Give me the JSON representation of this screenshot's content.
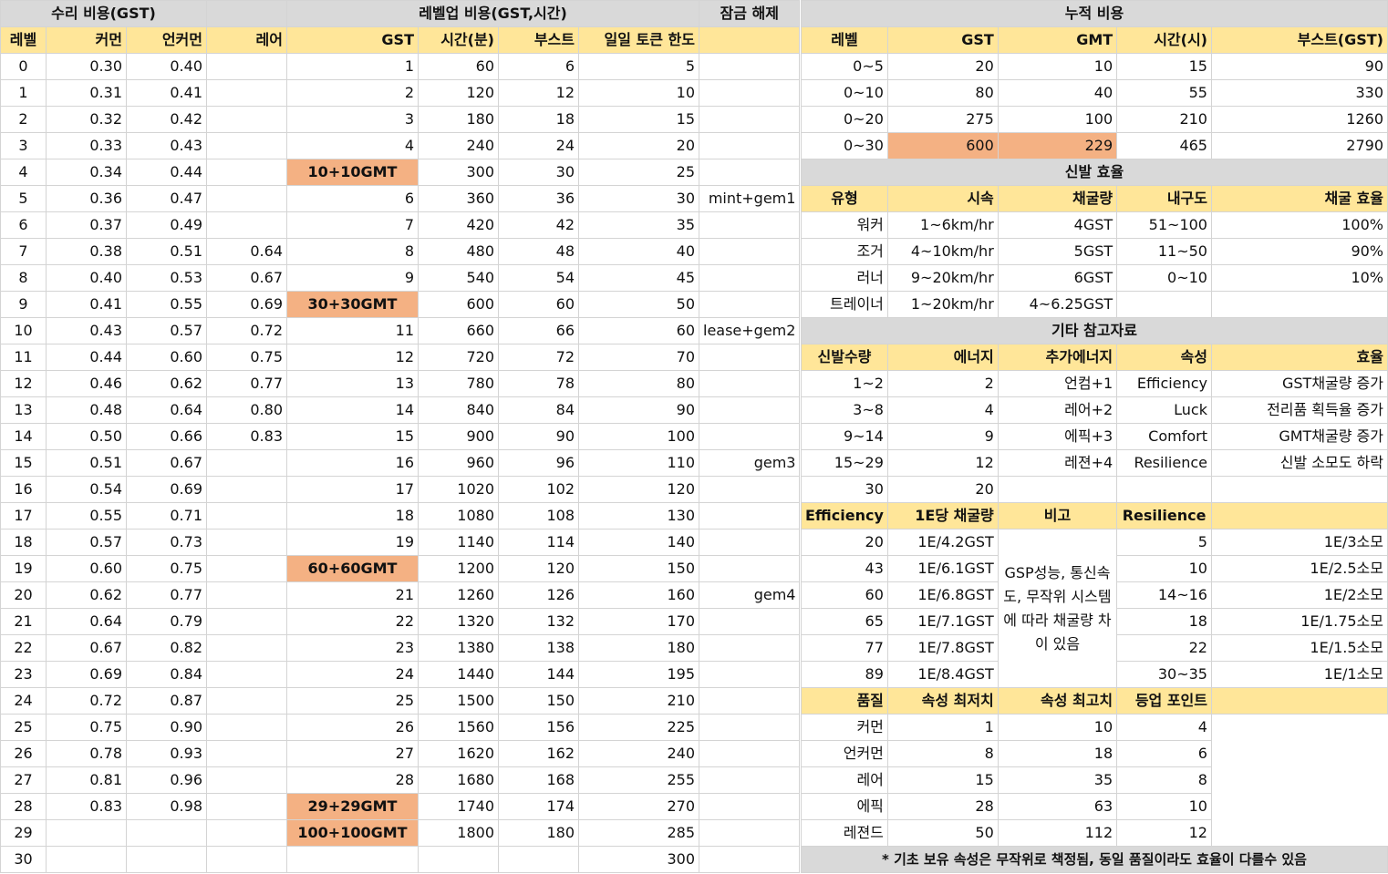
{
  "left": {
    "group_headers": [
      "수리 비용(GST)",
      "",
      "레벨업 비용(GST,시간)",
      "잠금 해제"
    ],
    "columns": [
      "레벨",
      "커먼",
      "언커먼",
      "레어",
      "GST",
      "시간(분)",
      "부스트",
      "일일 토큰 한도",
      ""
    ],
    "rows": [
      [
        "0",
        "0.30",
        "0.40",
        "",
        "1",
        "60",
        "6",
        "5",
        ""
      ],
      [
        "1",
        "0.31",
        "0.41",
        "",
        "2",
        "120",
        "12",
        "10",
        ""
      ],
      [
        "2",
        "0.32",
        "0.42",
        "",
        "3",
        "180",
        "18",
        "15",
        ""
      ],
      [
        "3",
        "0.33",
        "0.43",
        "",
        "4",
        "240",
        "24",
        "20",
        ""
      ],
      [
        "4",
        "0.34",
        "0.44",
        "",
        "10+10GMT",
        "300",
        "30",
        "25",
        ""
      ],
      [
        "5",
        "0.36",
        "0.47",
        "",
        "6",
        "360",
        "36",
        "30",
        "mint+gem1"
      ],
      [
        "6",
        "0.37",
        "0.49",
        "",
        "7",
        "420",
        "42",
        "35",
        ""
      ],
      [
        "7",
        "0.38",
        "0.51",
        "0.64",
        "8",
        "480",
        "48",
        "40",
        ""
      ],
      [
        "8",
        "0.40",
        "0.53",
        "0.67",
        "9",
        "540",
        "54",
        "45",
        ""
      ],
      [
        "9",
        "0.41",
        "0.55",
        "0.69",
        "30+30GMT",
        "600",
        "60",
        "50",
        ""
      ],
      [
        "10",
        "0.43",
        "0.57",
        "0.72",
        "11",
        "660",
        "66",
        "60",
        "lease+gem2"
      ],
      [
        "11",
        "0.44",
        "0.60",
        "0.75",
        "12",
        "720",
        "72",
        "70",
        ""
      ],
      [
        "12",
        "0.46",
        "0.62",
        "0.77",
        "13",
        "780",
        "78",
        "80",
        ""
      ],
      [
        "13",
        "0.48",
        "0.64",
        "0.80",
        "14",
        "840",
        "84",
        "90",
        ""
      ],
      [
        "14",
        "0.50",
        "0.66",
        "0.83",
        "15",
        "900",
        "90",
        "100",
        ""
      ],
      [
        "15",
        "0.51",
        "0.67",
        "",
        "16",
        "960",
        "96",
        "110",
        "gem3"
      ],
      [
        "16",
        "0.54",
        "0.69",
        "",
        "17",
        "1020",
        "102",
        "120",
        ""
      ],
      [
        "17",
        "0.55",
        "0.71",
        "",
        "18",
        "1080",
        "108",
        "130",
        ""
      ],
      [
        "18",
        "0.57",
        "0.73",
        "",
        "19",
        "1140",
        "114",
        "140",
        ""
      ],
      [
        "19",
        "0.60",
        "0.75",
        "",
        "60+60GMT",
        "1200",
        "120",
        "150",
        ""
      ],
      [
        "20",
        "0.62",
        "0.77",
        "",
        "21",
        "1260",
        "126",
        "160",
        "gem4"
      ],
      [
        "21",
        "0.64",
        "0.79",
        "",
        "22",
        "1320",
        "132",
        "170",
        ""
      ],
      [
        "22",
        "0.67",
        "0.82",
        "",
        "23",
        "1380",
        "138",
        "180",
        ""
      ],
      [
        "23",
        "0.69",
        "0.84",
        "",
        "24",
        "1440",
        "144",
        "195",
        ""
      ],
      [
        "24",
        "0.72",
        "0.87",
        "",
        "25",
        "1500",
        "150",
        "210",
        ""
      ],
      [
        "25",
        "0.75",
        "0.90",
        "",
        "26",
        "1560",
        "156",
        "225",
        ""
      ],
      [
        "26",
        "0.78",
        "0.93",
        "",
        "27",
        "1620",
        "162",
        "240",
        ""
      ],
      [
        "27",
        "0.81",
        "0.96",
        "",
        "28",
        "1680",
        "168",
        "255",
        ""
      ],
      [
        "28",
        "0.83",
        "0.98",
        "",
        "29+29GMT",
        "1740",
        "174",
        "270",
        ""
      ],
      [
        "29",
        "",
        "",
        "",
        "100+100GMT",
        "1800",
        "180",
        "285",
        ""
      ],
      [
        "30",
        "",
        "",
        "",
        "",
        "",
        "",
        "300",
        ""
      ]
    ],
    "highlight_color": "#f4b183"
  },
  "right": {
    "cumulative": {
      "title": "누적 비용",
      "columns": [
        "레벨",
        "GST",
        "GMT",
        "시간(시)",
        "부스트(GST)"
      ],
      "rows": [
        [
          "0~5",
          "20",
          "10",
          "15",
          "90"
        ],
        [
          "0~10",
          "80",
          "40",
          "55",
          "330"
        ],
        [
          "0~20",
          "275",
          "100",
          "210",
          "1260"
        ],
        [
          "0~30",
          "600",
          "229",
          "465",
          "2790"
        ]
      ]
    },
    "shoe": {
      "title": "신발 효율",
      "columns": [
        "유형",
        "시속",
        "채굴량",
        "내구도",
        "채굴 효율"
      ],
      "rows": [
        [
          "워커",
          "1~6km/hr",
          "4GST",
          "51~100",
          "100%"
        ],
        [
          "조거",
          "4~10km/hr",
          "5GST",
          "11~50",
          "90%"
        ],
        [
          "러너",
          "9~20km/hr",
          "6GST",
          "0~10",
          "10%"
        ],
        [
          "트레이너",
          "1~20km/hr",
          "4~6.25GST",
          "",
          ""
        ]
      ]
    },
    "ref": {
      "title": "기타 참고자료",
      "columns": [
        "신발수량",
        "에너지",
        "추가에너지",
        "속성",
        "효율"
      ],
      "rows": [
        [
          "1~2",
          "2",
          "언컴+1",
          "Efficiency",
          "GST채굴량 증가"
        ],
        [
          "3~8",
          "4",
          "레어+2",
          "Luck",
          "전리품 획득율 증가"
        ],
        [
          "9~14",
          "9",
          "에픽+3",
          "Comfort",
          "GMT채굴량 증가"
        ],
        [
          "15~29",
          "12",
          "레젼+4",
          "Resilience",
          "신발 소모도 하락"
        ],
        [
          "30",
          "20",
          "",
          "",
          ""
        ]
      ]
    },
    "eff": {
      "columns": [
        "Efficiency",
        "1E당 채굴량",
        "비고",
        "Resilience",
        ""
      ],
      "note": "GSP성능, 통신속도, 무작위 시스템에 따라 채굴량 차이 있음",
      "rows": [
        [
          "20",
          "1E/4.2GST",
          "5",
          "1E/3소모"
        ],
        [
          "43",
          "1E/6.1GST",
          "10",
          "1E/2.5소모"
        ],
        [
          "60",
          "1E/6.8GST",
          "14~16",
          "1E/2소모"
        ],
        [
          "65",
          "1E/7.1GST",
          "18",
          "1E/1.75소모"
        ],
        [
          "77",
          "1E/7.8GST",
          "22",
          "1E/1.5소모"
        ],
        [
          "89",
          "1E/8.4GST",
          "30~35",
          "1E/1소모"
        ]
      ]
    },
    "quality": {
      "columns": [
        "품질",
        "속성 최저치",
        "속성 최고치",
        "등업 포인트",
        ""
      ],
      "rows": [
        [
          "커먼",
          "1",
          "10",
          "4"
        ],
        [
          "언커먼",
          "8",
          "18",
          "6"
        ],
        [
          "레어",
          "15",
          "35",
          "8"
        ],
        [
          "에픽",
          "28",
          "63",
          "10"
        ],
        [
          "레젼드",
          "50",
          "112",
          "12"
        ]
      ]
    },
    "footnote": "* 기초 보유 속성은 무작위로 책정됨, 동일 품질이라도 효율이 다를수 있음"
  }
}
